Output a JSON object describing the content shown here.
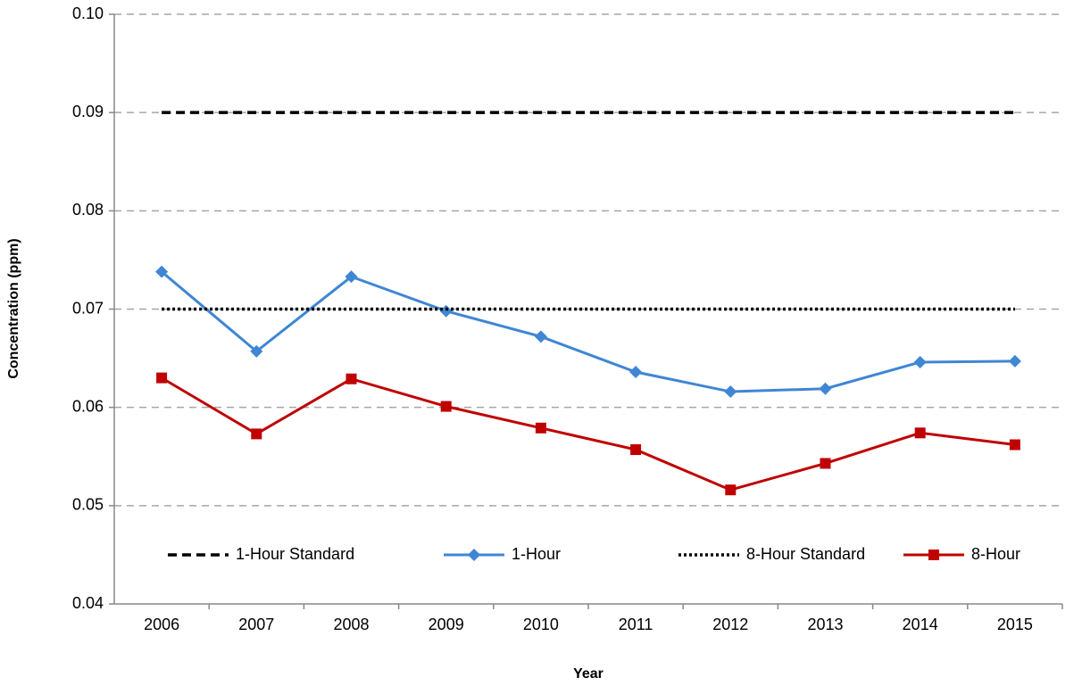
{
  "chart_data": {
    "type": "line",
    "xlabel": "Year",
    "ylabel": "Concentration (ppm)",
    "categories": [
      "2006",
      "2007",
      "2008",
      "2009",
      "2010",
      "2011",
      "2012",
      "2013",
      "2014",
      "2015"
    ],
    "series": [
      {
        "name": "1-Hour Standard",
        "color": "#000000",
        "style": "dashed",
        "marker": "none",
        "values": [
          0.09,
          0.09,
          0.09,
          0.09,
          0.09,
          0.09,
          0.09,
          0.09,
          0.09,
          0.09
        ]
      },
      {
        "name": "1-Hour",
        "color": "#3f86d4",
        "style": "solid",
        "marker": "diamond",
        "values": [
          0.0738,
          0.0657,
          0.0733,
          0.0698,
          0.0672,
          0.0636,
          0.0616,
          0.0619,
          0.0646,
          0.0647
        ]
      },
      {
        "name": "8-Hour Standard",
        "color": "#000000",
        "style": "dotted",
        "marker": "none",
        "values": [
          0.07,
          0.07,
          0.07,
          0.07,
          0.07,
          0.07,
          0.07,
          0.07,
          0.07,
          0.07
        ]
      },
      {
        "name": "8-Hour",
        "color": "#c00000",
        "style": "solid",
        "marker": "square",
        "values": [
          0.063,
          0.0573,
          0.0629,
          0.0601,
          0.0579,
          0.0557,
          0.0516,
          0.0543,
          0.0574,
          0.0562
        ]
      }
    ],
    "ylim": [
      0.04,
      0.1
    ],
    "yticks": [
      0.04,
      0.05,
      0.06,
      0.07,
      0.08,
      0.09,
      {
        "value": 0.1,
        "label": "0.10"
      }
    ],
    "grid": true,
    "legend": "bottom"
  }
}
